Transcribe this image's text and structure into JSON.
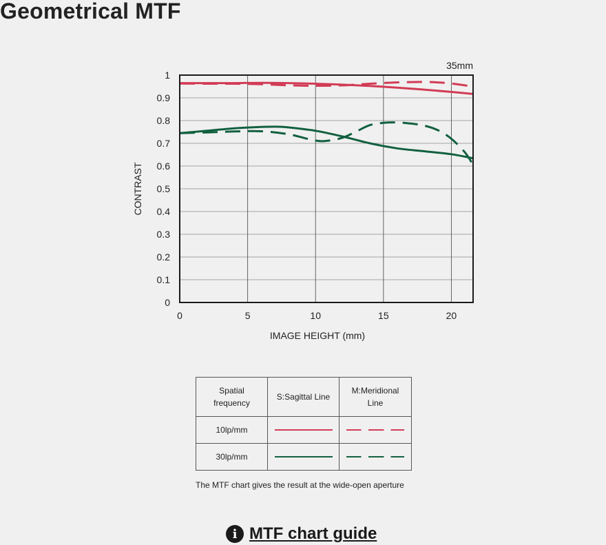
{
  "page": {
    "title": "Geometrical MTF"
  },
  "chart_data": {
    "type": "line",
    "title": "35mm",
    "xlabel": "IMAGE HEIGHT (mm)",
    "ylabel": "CONTRAST",
    "xlim": [
      0,
      21.6
    ],
    "ylim": [
      0,
      1
    ],
    "x_ticks": [
      0,
      5,
      10,
      15,
      20
    ],
    "y_ticks": [
      0,
      0.1,
      0.2,
      0.3,
      0.4,
      0.5,
      0.6,
      0.7,
      0.8,
      0.9,
      1
    ],
    "y_tick_labels": [
      "0",
      "0.1",
      "0.2",
      "0.3",
      "0.4",
      "0.5",
      "0.6",
      "0.7",
      "0.8",
      "0.9",
      "1"
    ],
    "grid": true,
    "series": [
      {
        "name": "10lp/mm S:Sagittal Line",
        "color": "#d23b55",
        "dash": "solid",
        "x": [
          0,
          2,
          4,
          6,
          8,
          10,
          12,
          14,
          16,
          18,
          20,
          21.6
        ],
        "y": [
          0.965,
          0.965,
          0.965,
          0.966,
          0.965,
          0.962,
          0.958,
          0.952,
          0.945,
          0.936,
          0.926,
          0.917
        ]
      },
      {
        "name": "10lp/mm M:Meridional Line",
        "color": "#d23b55",
        "dash": "dashed",
        "x": [
          0,
          2,
          4,
          6,
          8,
          10,
          12,
          14,
          16,
          18,
          19,
          20,
          21,
          21.6
        ],
        "y": [
          0.963,
          0.962,
          0.962,
          0.96,
          0.955,
          0.953,
          0.955,
          0.962,
          0.968,
          0.97,
          0.968,
          0.963,
          0.955,
          0.948
        ]
      },
      {
        "name": "30lp/mm S:Sagittal Line",
        "color": "#116040",
        "dash": "solid",
        "x": [
          0,
          2,
          4,
          6,
          7,
          8,
          10,
          12,
          14,
          16,
          18,
          20,
          21.6
        ],
        "y": [
          0.745,
          0.755,
          0.766,
          0.772,
          0.773,
          0.77,
          0.755,
          0.73,
          0.7,
          0.678,
          0.665,
          0.652,
          0.634
        ]
      },
      {
        "name": "30lp/mm M:Meridional Line",
        "color": "#116040",
        "dash": "dashed",
        "x": [
          0,
          2,
          4,
          6,
          8,
          10,
          11,
          12,
          13,
          14,
          15,
          16,
          17,
          18,
          19,
          20,
          21,
          21.6
        ],
        "y": [
          0.745,
          0.748,
          0.752,
          0.753,
          0.74,
          0.712,
          0.712,
          0.725,
          0.752,
          0.78,
          0.79,
          0.792,
          0.787,
          0.778,
          0.758,
          0.72,
          0.66,
          0.605
        ]
      }
    ]
  },
  "legend": {
    "header": {
      "frequency": "Spatial\nfrequency",
      "sagittal": "S:Sagittal Line",
      "meridional": "M:Meridional\nLine"
    },
    "rows": [
      {
        "frequency": "10lp/mm",
        "color": "#d23b55"
      },
      {
        "frequency": "30lp/mm",
        "color": "#116040"
      }
    ]
  },
  "caption": "The MTF chart gives the result at the wide-open aperture",
  "guide": {
    "label": "MTF chart guide",
    "icon": "info-icon"
  }
}
